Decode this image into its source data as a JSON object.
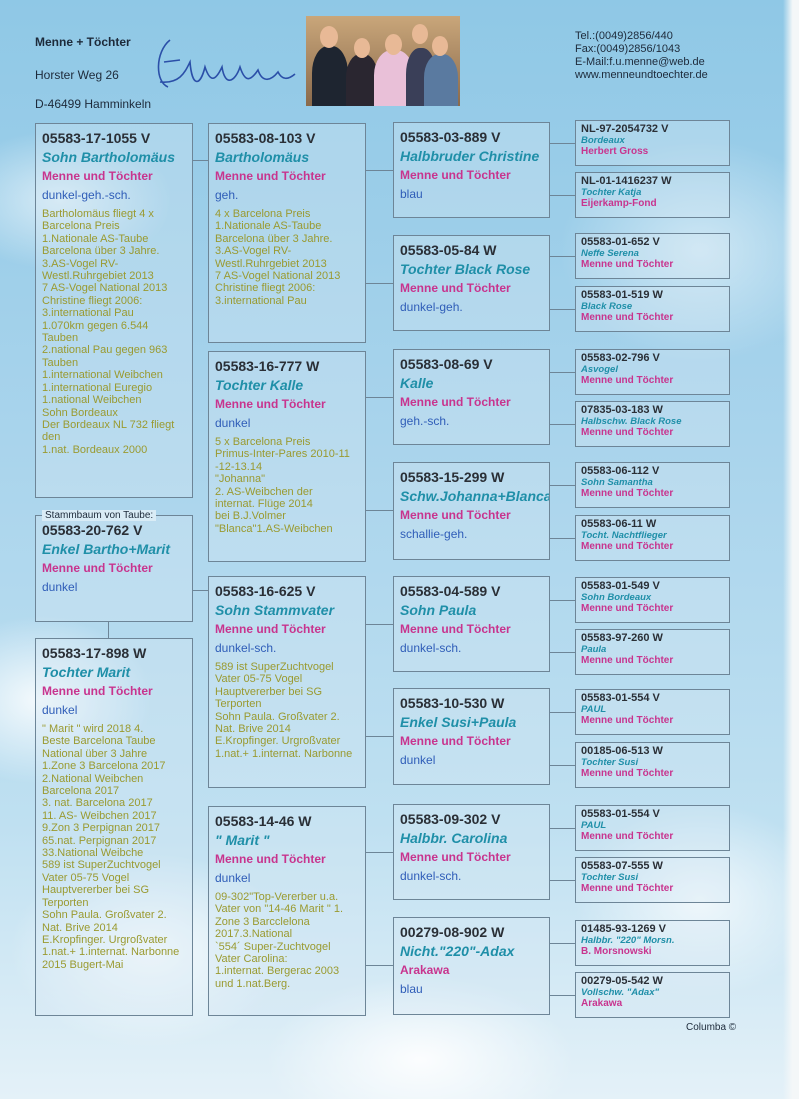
{
  "header": {
    "title": "Menne + Töchter",
    "street": "Horster Weg 26",
    "city": "D-46499 Hamminkeln",
    "signature": "F. Menne",
    "contact": [
      "Tel.:(0049)2856/440",
      "Fax:(0049)2856/1043",
      "E-Mail:f.u.menne@web.de",
      "www.menneundtoechter.de"
    ]
  },
  "pedigree_label": "Stammbaum von Taube:",
  "footer": "Columba ©",
  "colors": {
    "ring": "#2a2f36",
    "name": "#1f8fa8",
    "breeder": "#c8348e",
    "color": "#2f5db8",
    "notes": "#9a9a30"
  },
  "col1": [
    {
      "ring": "05583-17-1055 V",
      "name": "Sohn Bartholomäus",
      "breeder": "Menne und Töchter",
      "color": "dunkel-geh.-sch.",
      "notes": [
        "Bartholomäus fliegt 4 x",
        "Barcelona Preis",
        "1.Nationale AS-Taube",
        "Barcelona über 3 Jahre.",
        " 3.AS-Vogel RV-",
        "Westl.Ruhrgebiet 2013",
        " 7 AS-Vogel National 2013",
        "Christine fliegt 2006:",
        "3.international  Pau",
        "1.070km gegen 6.544",
        "Tauben",
        "2.national Pau gegen 963",
        "Tauben",
        "1.international Weibchen",
        "1.international Euregio",
        "1.national Weibchen",
        "Sohn Bordeaux",
        "Der Bordeaux  NL 732 fliegt",
        "den",
        "1.nat. Bordeaux 2000"
      ]
    },
    {
      "ring": "05583-20-762 V",
      "name": "Enkel Bartho+Marit",
      "breeder": "Menne und Töchter",
      "color": "dunkel",
      "notes": []
    },
    {
      "ring": "05583-17-898 W",
      "name": "Tochter Marit",
      "breeder": "Menne und Töchter",
      "color": "dunkel",
      "notes": [
        "\" Marit \"  wird  2018   4.",
        "Beste Barcelona Taube",
        "National über 3 Jahre",
        "1.Zone 3 Barcelona 2017",
        "2.National Weibchen",
        "Barcelona 2017",
        "3. nat. Barcelona 2017",
        "11. AS- Weibchen 2017",
        "9.Zon 3 Perpignan 2017",
        "65.nat. Perpignan 2017",
        "33.National Weibche",
        "589 ist SuperZuchtvogel",
        "Vater 05-75 Vogel",
        "Hauptvererber bei SG",
        "Terporten",
        "Sohn Paula. Großvater 2.",
        "Nat. Brive 2014",
        "E.Kropfinger. Urgroßvater",
        "1.nat.+ 1.internat. Narbonne",
        "2015 Bugert-Mai"
      ]
    }
  ],
  "col2": [
    {
      "ring": "05583-08-103 V",
      "name": "Bartholomäus",
      "breeder": "Menne und Töchter",
      "color": "geh.",
      "notes": [
        "4 x Barcelona Preis",
        "1.Nationale AS-Taube",
        "Barcelona über 3 Jahre.",
        " 3.AS-Vogel RV-",
        "Westl.Ruhrgebiet 2013",
        " 7 AS-Vogel National 2013",
        "Christine fliegt 2006:",
        "3.international  Pau"
      ]
    },
    {
      "ring": "05583-16-777 W",
      "name": "Tochter Kalle",
      "breeder": "Menne und Töchter",
      "color": "dunkel",
      "notes": [
        "5 x Barcelona Preis",
        "Primus-Inter-Pares 2010-11",
        "-12-13.14",
        "\"Johanna\"",
        "2. AS-Weibchen der",
        "internat. Flüge 2014",
        "bei B.J.Volmer",
        "\"Blanca\"1.AS-Weibchen"
      ]
    },
    {
      "ring": "05583-16-625 V",
      "name": "Sohn Stammvater",
      "breeder": "Menne und Töchter",
      "color": "dunkel-sch.",
      "notes": [
        "589 ist SuperZuchtvogel",
        "Vater 05-75 Vogel",
        "Hauptvererber bei SG",
        "Terporten",
        "Sohn Paula. Großvater 2.",
        "Nat. Brive 2014",
        "E.Kropfinger. Urgroßvater",
        "1.nat.+ 1.internat. Narbonne"
      ]
    },
    {
      "ring": "05583-14-46 W",
      "name": "\" Marit \"",
      "breeder": "Menne und Töchter",
      "color": "dunkel",
      "notes": [
        "09-302\"Top-Vererber u.a.",
        "Vater von \"14-46 Marit \" 1.",
        "Zone 3 Barcclelona",
        "2017.3.National",
        "`554´ Super-Zuchtvogel",
        "Vater Carolina:",
        "1.internat. Bergerac 2003",
        "und 1.nat.Berg."
      ]
    }
  ],
  "col3": [
    {
      "ring": "05583-03-889 V",
      "name": "Halbbruder Christine",
      "breeder": "Menne und Töchter",
      "color": "blau"
    },
    {
      "ring": "05583-05-84 W",
      "name": "Tochter Black Rose",
      "breeder": "Menne und Töchter",
      "color": "dunkel-geh."
    },
    {
      "ring": "05583-08-69 V",
      "name": "Kalle",
      "breeder": "Menne und Töchter",
      "color": "geh.-sch."
    },
    {
      "ring": "05583-15-299 W",
      "name": "Schw.Johanna+Blanca",
      "breeder": "Menne und Töchter",
      "color": "schallie-geh."
    },
    {
      "ring": "05583-04-589 V",
      "name": "Sohn Paula",
      "breeder": "Menne und Töchter",
      "color": "dunkel-sch."
    },
    {
      "ring": "05583-10-530 W",
      "name": "Enkel Susi+Paula",
      "breeder": "Menne und Töchter",
      "color": "dunkel"
    },
    {
      "ring": "05583-09-302 V",
      "name": "Halbbr. Carolina",
      "breeder": "Menne und Töchter",
      "color": "dunkel-sch."
    },
    {
      "ring": "00279-08-902 W",
      "name": "Nicht.\"220\"-Adax",
      "breeder": "Arakawa",
      "color": "blau"
    }
  ],
  "col4": [
    {
      "ring": "NL-97-2054732 V",
      "name": "Bordeaux",
      "breeder": "Herbert Gross"
    },
    {
      "ring": "NL-01-1416237 W",
      "name": "Tochter Katja",
      "breeder": "Eijerkamp-Fond"
    },
    {
      "ring": "05583-01-652 V",
      "name": "Neffe Serena",
      "breeder": "Menne und Töchter"
    },
    {
      "ring": "05583-01-519 W",
      "name": "Black Rose",
      "breeder": "Menne und Töchter"
    },
    {
      "ring": "05583-02-796 V",
      "name": "Asvogel",
      "breeder": "Menne und Töchter"
    },
    {
      "ring": "07835-03-183 W",
      "name": "Halbschw. Black Rose",
      "breeder": "Menne und Töchter"
    },
    {
      "ring": "05583-06-112 V",
      "name": "Sohn Samantha",
      "breeder": "Menne und Töchter"
    },
    {
      "ring": "05583-06-11 W",
      "name": "Tocht. Nachtflieger",
      "breeder": "Menne und Töchter"
    },
    {
      "ring": "05583-01-549 V",
      "name": "Sohn Bordeaux",
      "breeder": "Menne und Töchter"
    },
    {
      "ring": "05583-97-260 W",
      "name": "Paula",
      "breeder": "Menne und Töchter"
    },
    {
      "ring": "05583-01-554 V",
      "name": " PAUL",
      "breeder": "Menne und Töchter"
    },
    {
      "ring": "00185-06-513 W",
      "name": "Tochter Susi",
      "breeder": "Menne und Töchter"
    },
    {
      "ring": "05583-01-554 V",
      "name": " PAUL",
      "breeder": "Menne und Töchter"
    },
    {
      "ring": "05583-07-555 W",
      "name": "Tochter Susi",
      "breeder": "Menne und Töchter"
    },
    {
      "ring": "01485-93-1269 V",
      "name": "Halbbr. \"220\" Morsn.",
      "breeder": "B. Morsnowski"
    },
    {
      "ring": "00279-05-542 W",
      "name": "Vollschw. \"Adax\"",
      "breeder": "Arakawa"
    }
  ]
}
